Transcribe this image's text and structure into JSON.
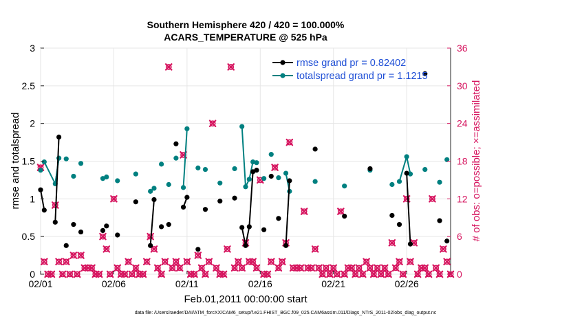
{
  "colors": {
    "rmse": "#000000",
    "spread": "#008080",
    "obs": "#d6155f",
    "legend_text": "#1f4fd6",
    "axis": "#262626"
  },
  "chart_data": {
    "type": "line",
    "title": [
      "Southern Hemisphere 420 / 420 = 100.000%",
      "ACARS_TEMPERATURE @ 525 hPa"
    ],
    "xlabel": "Feb.01,2011 00:00:00 start",
    "ylabel_left": "rmse and totalspread",
    "ylabel_right": "# of obs: o=possible; ×=assimilated",
    "xlim": [
      0,
      28
    ],
    "ylim_left": [
      0,
      3
    ],
    "ylim_right": [
      0,
      36
    ],
    "x_ticks": [
      {
        "value": 0,
        "label": "02/01"
      },
      {
        "value": 5,
        "label": "02/06"
      },
      {
        "value": 10,
        "label": "02/11"
      },
      {
        "value": 15,
        "label": "02/16"
      },
      {
        "value": 20,
        "label": "02/21"
      },
      {
        "value": 25,
        "label": "02/26"
      }
    ],
    "y_ticks_left": [
      {
        "value": 0,
        "label": "0"
      },
      {
        "value": 0.5,
        "label": "0.5"
      },
      {
        "value": 1,
        "label": "1"
      },
      {
        "value": 1.5,
        "label": "1.5"
      },
      {
        "value": 2,
        "label": "2"
      },
      {
        "value": 2.5,
        "label": "2.5"
      },
      {
        "value": 3,
        "label": "3"
      }
    ],
    "y_ticks_right": [
      {
        "value": 0,
        "label": "0"
      },
      {
        "value": 6,
        "label": "6"
      },
      {
        "value": 12,
        "label": "12"
      },
      {
        "value": 18,
        "label": "18"
      },
      {
        "value": 24,
        "label": "24"
      },
      {
        "value": 30,
        "label": "30"
      },
      {
        "value": 36,
        "label": "36"
      }
    ],
    "legend": [
      {
        "name": "rmse grand pr = 0.82402",
        "series": "rmse"
      },
      {
        "name": "totalspread grand pr = 1.1215",
        "series": "spread"
      }
    ],
    "rmse": [
      [
        0.0,
        1.12
      ],
      [
        0.25,
        0.85
      ],
      [
        1.0,
        0.69
      ],
      [
        1.25,
        1.82
      ],
      [
        1.75,
        0.38
      ],
      [
        2.25,
        0.66
      ],
      [
        2.75,
        0.56
      ],
      [
        4.25,
        0.58
      ],
      [
        4.5,
        0.64
      ],
      [
        5.25,
        0.52
      ],
      [
        6.5,
        0.96
      ],
      [
        7.5,
        0.38
      ],
      [
        7.75,
        0.99
      ],
      [
        8.25,
        0.63
      ],
      [
        8.75,
        0.66
      ],
      [
        9.25,
        1.73
      ],
      [
        9.75,
        0.89
      ],
      [
        10.0,
        1.02
      ],
      [
        10.75,
        0.33
      ],
      [
        11.25,
        0.86
      ],
      [
        12.25,
        0.97
      ],
      [
        13.25,
        1.01
      ],
      [
        13.75,
        0.62
      ],
      [
        14.0,
        0.38
      ],
      [
        14.25,
        0.63
      ],
      [
        14.5,
        1.36
      ],
      [
        14.75,
        1.38
      ],
      [
        15.25,
        0.59
      ],
      [
        15.75,
        1.3
      ],
      [
        16.25,
        0.74
      ],
      [
        16.75,
        0.38
      ],
      [
        17.0,
        1.24
      ],
      [
        18.75,
        1.66
      ],
      [
        20.75,
        0.77
      ],
      [
        22.5,
        1.4
      ],
      [
        24.0,
        0.78
      ],
      [
        24.5,
        0.66
      ],
      [
        25.0,
        1.34
      ],
      [
        25.25,
        0.4
      ],
      [
        26.25,
        2.66
      ],
      [
        27.25,
        0.71
      ],
      [
        27.75,
        0.44
      ]
    ],
    "spread": [
      [
        0.0,
        1.38
      ],
      [
        0.25,
        1.49
      ],
      [
        1.0,
        1.2
      ],
      [
        1.25,
        1.54
      ],
      [
        1.75,
        1.53
      ],
      [
        2.25,
        1.3
      ],
      [
        2.75,
        1.47
      ],
      [
        4.25,
        1.27
      ],
      [
        4.5,
        1.29
      ],
      [
        5.25,
        1.24
      ],
      [
        6.5,
        1.33
      ],
      [
        7.5,
        1.1
      ],
      [
        7.75,
        1.14
      ],
      [
        8.25,
        1.46
      ],
      [
        8.75,
        1.19
      ],
      [
        9.25,
        1.54
      ],
      [
        9.75,
        1.15
      ],
      [
        10.0,
        1.93
      ],
      [
        10.75,
        1.41
      ],
      [
        11.25,
        1.39
      ],
      [
        12.25,
        1.21
      ],
      [
        13.25,
        1.4
      ],
      [
        13.75,
        1.96
      ],
      [
        14.0,
        1.16
      ],
      [
        14.25,
        1.26
      ],
      [
        14.5,
        1.49
      ],
      [
        14.75,
        1.48
      ],
      [
        15.25,
        1.27
      ],
      [
        15.75,
        1.59
      ],
      [
        16.25,
        1.28
      ],
      [
        16.75,
        1.34
      ],
      [
        17.0,
        1.1
      ],
      [
        18.75,
        1.23
      ],
      [
        20.75,
        1.17
      ],
      [
        22.5,
        1.38
      ],
      [
        24.0,
        1.19
      ],
      [
        24.5,
        1.23
      ],
      [
        25.0,
        1.56
      ],
      [
        25.25,
        1.33
      ],
      [
        26.25,
        1.39
      ],
      [
        27.25,
        1.22
      ],
      [
        27.75,
        1.52
      ]
    ],
    "spread_lines": [
      [
        0.25,
        1.38
      ],
      [
        1.0,
        1.25
      ],
      [
        7.5,
        7.75
      ],
      [
        9.75,
        10.0
      ],
      [
        13.75,
        14.75
      ],
      [
        16.75,
        17.0
      ],
      [
        24.5,
        25.25
      ]
    ],
    "rmse_lines": [
      [
        0.0,
        0.25
      ],
      [
        1.0,
        1.25
      ],
      [
        7.5,
        7.75
      ],
      [
        9.75,
        10.0
      ],
      [
        13.75,
        14.75
      ],
      [
        16.75,
        17.0
      ],
      [
        25.0,
        25.25
      ]
    ],
    "obs_possible": [
      [
        0,
        17
      ],
      [
        0.25,
        2
      ],
      [
        0.5,
        0
      ],
      [
        0.75,
        0
      ],
      [
        1.0,
        11
      ],
      [
        1.25,
        2
      ],
      [
        1.5,
        0
      ],
      [
        1.75,
        2
      ],
      [
        2.0,
        0
      ],
      [
        2.25,
        3
      ],
      [
        2.5,
        0
      ],
      [
        2.75,
        3
      ],
      [
        3.0,
        1
      ],
      [
        3.25,
        1
      ],
      [
        3.5,
        1
      ],
      [
        3.75,
        0
      ],
      [
        4.0,
        0
      ],
      [
        4.25,
        6
      ],
      [
        4.5,
        4
      ],
      [
        4.75,
        0
      ],
      [
        5.0,
        12
      ],
      [
        5.25,
        1
      ],
      [
        5.5,
        0
      ],
      [
        5.75,
        0
      ],
      [
        6.0,
        2
      ],
      [
        6.25,
        0
      ],
      [
        6.5,
        1
      ],
      [
        6.75,
        0
      ],
      [
        7.0,
        0
      ],
      [
        7.25,
        2
      ],
      [
        7.5,
        6
      ],
      [
        7.75,
        4
      ],
      [
        8.0,
        1
      ],
      [
        8.25,
        0
      ],
      [
        8.5,
        2
      ],
      [
        8.75,
        33
      ],
      [
        9.0,
        1
      ],
      [
        9.25,
        2
      ],
      [
        9.5,
        1
      ],
      [
        9.75,
        19
      ],
      [
        10.0,
        2
      ],
      [
        10.25,
        0
      ],
      [
        10.5,
        0
      ],
      [
        10.75,
        3
      ],
      [
        11.0,
        1
      ],
      [
        11.25,
        0
      ],
      [
        11.5,
        2
      ],
      [
        11.75,
        24
      ],
      [
        12.0,
        1
      ],
      [
        12.25,
        0
      ],
      [
        12.5,
        0
      ],
      [
        12.75,
        4
      ],
      [
        13.0,
        33
      ],
      [
        13.25,
        1
      ],
      [
        13.5,
        2
      ],
      [
        13.75,
        1
      ],
      [
        14.0,
        5
      ],
      [
        14.25,
        2
      ],
      [
        14.5,
        2
      ],
      [
        14.75,
        1
      ],
      [
        15.0,
        15
      ],
      [
        15.25,
        0
      ],
      [
        15.5,
        0
      ],
      [
        15.75,
        2
      ],
      [
        16.0,
        17
      ],
      [
        16.25,
        1
      ],
      [
        16.5,
        2
      ],
      [
        16.75,
        5
      ],
      [
        17.0,
        21
      ],
      [
        17.25,
        1
      ],
      [
        17.5,
        1
      ],
      [
        17.75,
        1
      ],
      [
        18.0,
        10
      ],
      [
        18.25,
        1
      ],
      [
        18.5,
        1
      ],
      [
        18.75,
        4
      ],
      [
        19.0,
        1
      ],
      [
        19.25,
        0
      ],
      [
        19.5,
        1
      ],
      [
        19.75,
        0
      ],
      [
        20.0,
        1
      ],
      [
        20.25,
        0
      ],
      [
        20.5,
        10
      ],
      [
        20.75,
        0
      ],
      [
        21.0,
        1
      ],
      [
        21.25,
        1
      ],
      [
        21.5,
        0
      ],
      [
        21.75,
        1
      ],
      [
        22.0,
        0
      ],
      [
        22.25,
        2
      ],
      [
        22.5,
        1
      ],
      [
        22.75,
        0
      ],
      [
        23.0,
        1
      ],
      [
        23.25,
        0
      ],
      [
        23.5,
        1
      ],
      [
        23.75,
        0
      ],
      [
        24.0,
        5
      ],
      [
        24.25,
        1
      ],
      [
        24.5,
        2
      ],
      [
        24.75,
        0
      ],
      [
        25.0,
        12
      ],
      [
        25.25,
        2
      ],
      [
        25.5,
        5
      ],
      [
        25.75,
        0
      ],
      [
        26.0,
        1
      ],
      [
        26.25,
        1
      ],
      [
        26.5,
        0
      ],
      [
        26.75,
        12
      ],
      [
        27.0,
        1
      ],
      [
        27.25,
        0
      ],
      [
        27.5,
        4
      ],
      [
        27.75,
        2
      ],
      [
        28.0,
        0
      ]
    ]
  },
  "footer": {
    "data_file": "data file: /Users/raeder/DAI/ATM_forcXX/CAM6_setup/f.e21.FHIST_BGC.f09_025.CAM6assim.011/Diags_NTrS_2011-02/obs_diag_output.nc"
  }
}
